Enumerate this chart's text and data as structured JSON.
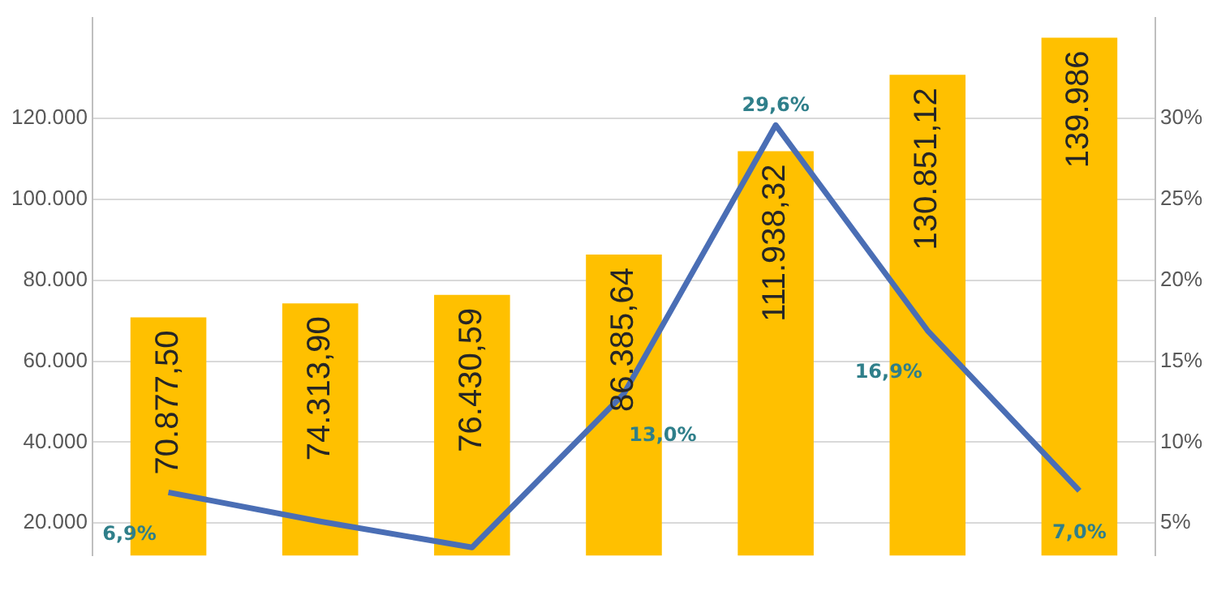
{
  "chart_data": {
    "type": "bar",
    "categories": [
      null,
      null,
      null,
      null,
      null,
      null,
      null
    ],
    "series": [
      {
        "color": "#ffc000",
        "values": [
          70877.5,
          74313.9,
          76430.59,
          86385.64,
          111938.32,
          130851.12,
          139986
        ],
        "value_labels": [
          "70.877,50",
          "74.313,90",
          "76.430,59",
          "86.385,64",
          "111.938,32",
          "130.851,12",
          "139.986"
        ]
      },
      {
        "type": "line",
        "axis": "y2",
        "color": "#4a6eb5",
        "values": [
          6.9,
          5.1,
          3.5,
          13.0,
          29.6,
          16.9,
          7.0
        ],
        "value_labels": [
          "6,9%",
          null,
          null,
          "13,0%",
          "29,6%",
          "16,9%",
          "7,0%"
        ]
      }
    ],
    "ylim": [
      12000,
      145000
    ],
    "yticks": [
      {
        "value": 20000,
        "label": "20.000"
      },
      {
        "value": 40000,
        "label": "40.000"
      },
      {
        "value": 60000,
        "label": "60.000"
      },
      {
        "value": 80000,
        "label": "80.000"
      },
      {
        "value": 100000,
        "label": "100.000"
      },
      {
        "value": 120000,
        "label": "120.000"
      }
    ],
    "y2lim": [
      3,
      36.25
    ],
    "y2ticks": [
      {
        "value": 5,
        "label": "5%"
      },
      {
        "value": 10,
        "label": "10%"
      },
      {
        "value": 15,
        "label": "15%"
      },
      {
        "value": 20,
        "label": "20%"
      },
      {
        "value": 25,
        "label": "25%"
      },
      {
        "value": 30,
        "label": "30%"
      }
    ],
    "grid": "y",
    "legend": false,
    "marker": "none",
    "line_style": "solid"
  }
}
